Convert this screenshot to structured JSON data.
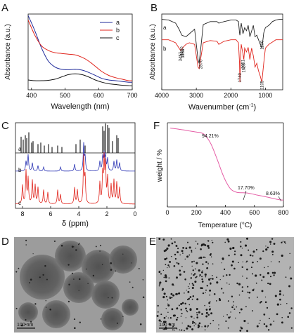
{
  "chart_data": [
    {
      "panel": "A",
      "type": "line",
      "xlabel": "Wavelength (nm)",
      "ylabel": "Absorbance (a.u.)",
      "xlim": [
        390,
        700
      ],
      "xticks": [
        "400",
        "500",
        "600",
        "700"
      ],
      "legend_position": "top-right",
      "series": [
        {
          "name": "a",
          "color": "#1f2a9a",
          "x": [
            390,
            410,
            430,
            450,
            470,
            490,
            510,
            530,
            550,
            570,
            590,
            610,
            630,
            650,
            670,
            690,
            700
          ],
          "y": [
            0.98,
            0.78,
            0.55,
            0.38,
            0.3,
            0.27,
            0.265,
            0.27,
            0.26,
            0.23,
            0.19,
            0.15,
            0.13,
            0.12,
            0.11,
            0.1,
            0.1
          ]
        },
        {
          "name": "b",
          "color": "#e0231b",
          "x": [
            390,
            410,
            430,
            450,
            470,
            490,
            510,
            530,
            550,
            570,
            590,
            610,
            630,
            650,
            670,
            690,
            700
          ],
          "y": [
            0.92,
            0.72,
            0.58,
            0.52,
            0.49,
            0.48,
            0.47,
            0.46,
            0.43,
            0.38,
            0.31,
            0.24,
            0.19,
            0.16,
            0.14,
            0.12,
            0.12
          ]
        },
        {
          "name": "c",
          "color": "#111111",
          "x": [
            390,
            410,
            430,
            450,
            470,
            490,
            510,
            530,
            550,
            570,
            590,
            610,
            630,
            650,
            670,
            690,
            700
          ],
          "y": [
            0.13,
            0.12,
            0.12,
            0.125,
            0.14,
            0.17,
            0.2,
            0.21,
            0.2,
            0.17,
            0.13,
            0.1,
            0.08,
            0.07,
            0.06,
            0.055,
            0.05
          ]
        }
      ]
    },
    {
      "panel": "B",
      "type": "line",
      "xlabel": "Wavenumber (cm",
      "xlabel_sup": "-1",
      "xlabel_end": ")",
      "ylabel": "Absorbance (a.u.)",
      "xlim": [
        4000,
        500
      ],
      "xticks": [
        "4000",
        "3000",
        "2000",
        "1000"
      ],
      "series": [
        {
          "name": "a",
          "color": "#222222",
          "x": [
            4000,
            3800,
            3600,
            3500,
            3420,
            3300,
            3200,
            3050,
            2950,
            2920,
            2870,
            2800,
            2600,
            2400,
            2350,
            2200,
            2000,
            1850,
            1780,
            1750,
            1740,
            1720,
            1700,
            1650,
            1600,
            1550,
            1500,
            1450,
            1350,
            1300,
            1250,
            1150,
            1100,
            1050,
            1000,
            900,
            800,
            700,
            600,
            500
          ],
          "y": [
            0.93,
            0.92,
            0.88,
            0.8,
            0.72,
            0.7,
            0.74,
            0.8,
            0.4,
            0.35,
            0.55,
            0.86,
            0.9,
            0.9,
            0.88,
            0.9,
            0.92,
            0.92,
            0.9,
            0.75,
            0.72,
            0.8,
            0.88,
            0.74,
            0.82,
            0.78,
            0.85,
            0.7,
            0.85,
            0.7,
            0.72,
            0.6,
            0.55,
            0.75,
            0.82,
            0.85,
            0.9,
            0.92,
            0.93,
            0.93
          ]
        },
        {
          "name": "b",
          "color": "#e0231b",
          "x": [
            4000,
            3800,
            3600,
            3500,
            3457,
            3420,
            3385,
            3300,
            3200,
            3050,
            2950,
            2920,
            2870,
            2800,
            2600,
            2400,
            2350,
            2200,
            2000,
            1850,
            1780,
            1750,
            1740,
            1720,
            1700,
            1651,
            1626,
            1600,
            1550,
            1500,
            1450,
            1400,
            1350,
            1300,
            1250,
            1200,
            1150,
            1105,
            1050,
            1000,
            900,
            800,
            700,
            600,
            500
          ],
          "y": [
            0.66,
            0.66,
            0.62,
            0.55,
            0.52,
            0.53,
            0.56,
            0.6,
            0.62,
            0.6,
            0.3,
            0.28,
            0.42,
            0.62,
            0.65,
            0.64,
            0.6,
            0.64,
            0.66,
            0.66,
            0.62,
            0.35,
            0.1,
            0.4,
            0.6,
            0.48,
            0.4,
            0.55,
            0.5,
            0.56,
            0.4,
            0.55,
            0.45,
            0.3,
            0.35,
            0.25,
            0.18,
            0.1,
            0.35,
            0.55,
            0.6,
            0.63,
            0.66,
            0.66,
            0.66
          ]
        }
      ],
      "annotations": [
        "3457",
        "3385",
        "3420",
        "2870",
        "1740",
        "1651",
        "1626",
        "1100",
        "1105"
      ]
    },
    {
      "panel": "C",
      "type": "line",
      "xlabel": "δ (ppm)",
      "xlim": [
        8.5,
        0
      ],
      "xticks": [
        "8",
        "6",
        "4",
        "2",
        "0"
      ],
      "series": [
        {
          "name": "a",
          "color": "#111111",
          "peaks_ppm": [
            8.1,
            7.95,
            7.8,
            7.7,
            7.55,
            7.35,
            7.25,
            6.9,
            6.7,
            6.45,
            6.15,
            5.9,
            5.5,
            5.2,
            4.2,
            3.9,
            3.55,
            2.3,
            2.2,
            2.1,
            1.95,
            1.85,
            1.6,
            1.3,
            1.2
          ],
          "peak_heights": [
            0.55,
            0.45,
            0.6,
            0.5,
            0.7,
            0.35,
            0.4,
            0.3,
            0.35,
            0.25,
            0.3,
            0.2,
            0.25,
            0.2,
            0.3,
            0.45,
            0.25,
            0.9,
            0.75,
            1.0,
            0.95,
            0.85,
            0.4,
            0.6,
            0.5
          ]
        },
        {
          "name": "b",
          "color": "#2b34b4",
          "peaks_ppm": [
            7.75,
            7.6,
            7.3,
            6.9,
            6.5,
            5.3,
            4.3,
            3.65,
            3.55,
            2.5,
            2.3,
            2.2,
            2.1,
            1.95,
            1.5,
            1.3,
            1.1
          ],
          "peak_heights": [
            0.35,
            0.6,
            0.3,
            0.2,
            0.15,
            0.15,
            0.25,
            1.0,
            0.5,
            0.35,
            0.5,
            0.6,
            0.55,
            0.45,
            0.35,
            0.4,
            0.3
          ]
        },
        {
          "name": "c",
          "color": "#e0231b",
          "peaks_ppm": [
            8.0,
            7.75,
            7.6,
            7.3,
            7.1,
            6.9,
            6.5,
            6.2,
            5.5,
            5.3,
            4.3,
            4.1,
            3.65,
            3.55,
            2.5,
            2.3,
            2.2,
            2.1,
            1.95,
            1.7,
            1.5,
            1.3,
            1.1
          ],
          "peak_heights": [
            0.4,
            0.7,
            0.55,
            0.5,
            0.4,
            0.35,
            0.3,
            0.25,
            0.3,
            0.2,
            0.35,
            0.3,
            1.0,
            0.55,
            0.45,
            0.6,
            0.9,
            0.8,
            0.55,
            0.4,
            0.5,
            0.45,
            0.35
          ]
        }
      ]
    },
    {
      "panel": "F",
      "type": "line",
      "xlabel": "Temperature (°C)",
      "ylabel": "weight / %",
      "xlim": [
        0,
        800
      ],
      "xticks": [
        "0",
        "200",
        "400",
        "600",
        "800"
      ],
      "series": [
        {
          "name": "",
          "color": "#e55ea6",
          "x": [
            20,
            100,
            150,
            200,
            230,
            260,
            300,
            340,
            380,
            410,
            440,
            480,
            550,
            620,
            700,
            760,
            800
          ],
          "y": [
            100,
            98,
            96.5,
            95,
            94.2,
            91,
            80,
            62,
            42,
            30,
            22,
            18.5,
            17.7,
            15,
            12,
            9.5,
            8.63
          ]
        }
      ],
      "annotations": [
        "94.21%",
        "17.70%",
        "8.63%"
      ]
    }
  ],
  "panels": {
    "a": "A",
    "b": "B",
    "c": "C",
    "d": "D",
    "e": "E",
    "f": "F"
  },
  "micrographs": {
    "d_scale": "100 nm",
    "e_scale": "100 nm"
  },
  "colors": {
    "blue": "#1f2a9a",
    "red": "#e0231b",
    "black": "#111111",
    "pink": "#e55ea6",
    "c_blue": "#2b34b4"
  }
}
